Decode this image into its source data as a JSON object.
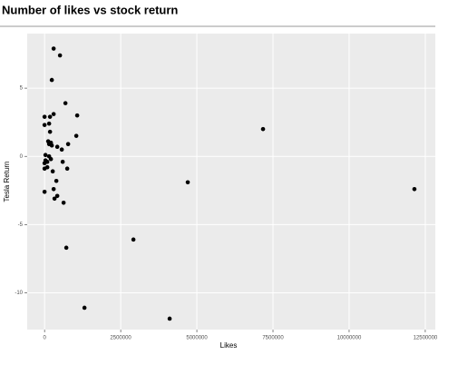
{
  "chart_data": {
    "type": "scatter",
    "title": "Number of likes vs stock return",
    "x_label": "Likes",
    "y_label": "Tesla Return",
    "color": "#000000",
    "grid": true,
    "xlim": [
      -570000,
      12830000
    ],
    "ylim": [
      -12.7,
      9.0
    ],
    "xticks": [
      0,
      2500000,
      5000000,
      7500000,
      10000000,
      12500000
    ],
    "yticks": [
      -10,
      -5,
      0,
      5
    ],
    "x": [
      298000,
      506000,
      238000,
      685000,
      1071000,
      298000,
      0,
      179000,
      0,
      149000,
      179000,
      1042000,
      119000,
      208000,
      149000,
      238000,
      774000,
      417000,
      565000,
      30000,
      149000,
      208000,
      30000,
      90000,
      0,
      90000,
      0,
      595000,
      744000,
      268000,
      387000,
      0,
      298000,
      417000,
      327000,
      625000,
      714000,
      2917000,
      1310000,
      4107000,
      4702000,
      7173000,
      12143000
    ],
    "y": [
      7.9,
      7.4,
      5.6,
      3.9,
      3.0,
      3.1,
      2.9,
      2.9,
      2.3,
      2.4,
      1.8,
      1.5,
      1.1,
      1.0,
      0.9,
      0.8,
      0.9,
      0.7,
      0.5,
      0.1,
      0.0,
      -0.2,
      -0.3,
      -0.4,
      -0.5,
      -0.8,
      -0.9,
      -0.4,
      -0.9,
      -1.1,
      -1.8,
      -2.6,
      -2.4,
      -2.9,
      -3.1,
      -3.4,
      -6.7,
      -6.1,
      -11.1,
      -11.9,
      -1.9,
      2.0,
      -2.4
    ]
  }
}
